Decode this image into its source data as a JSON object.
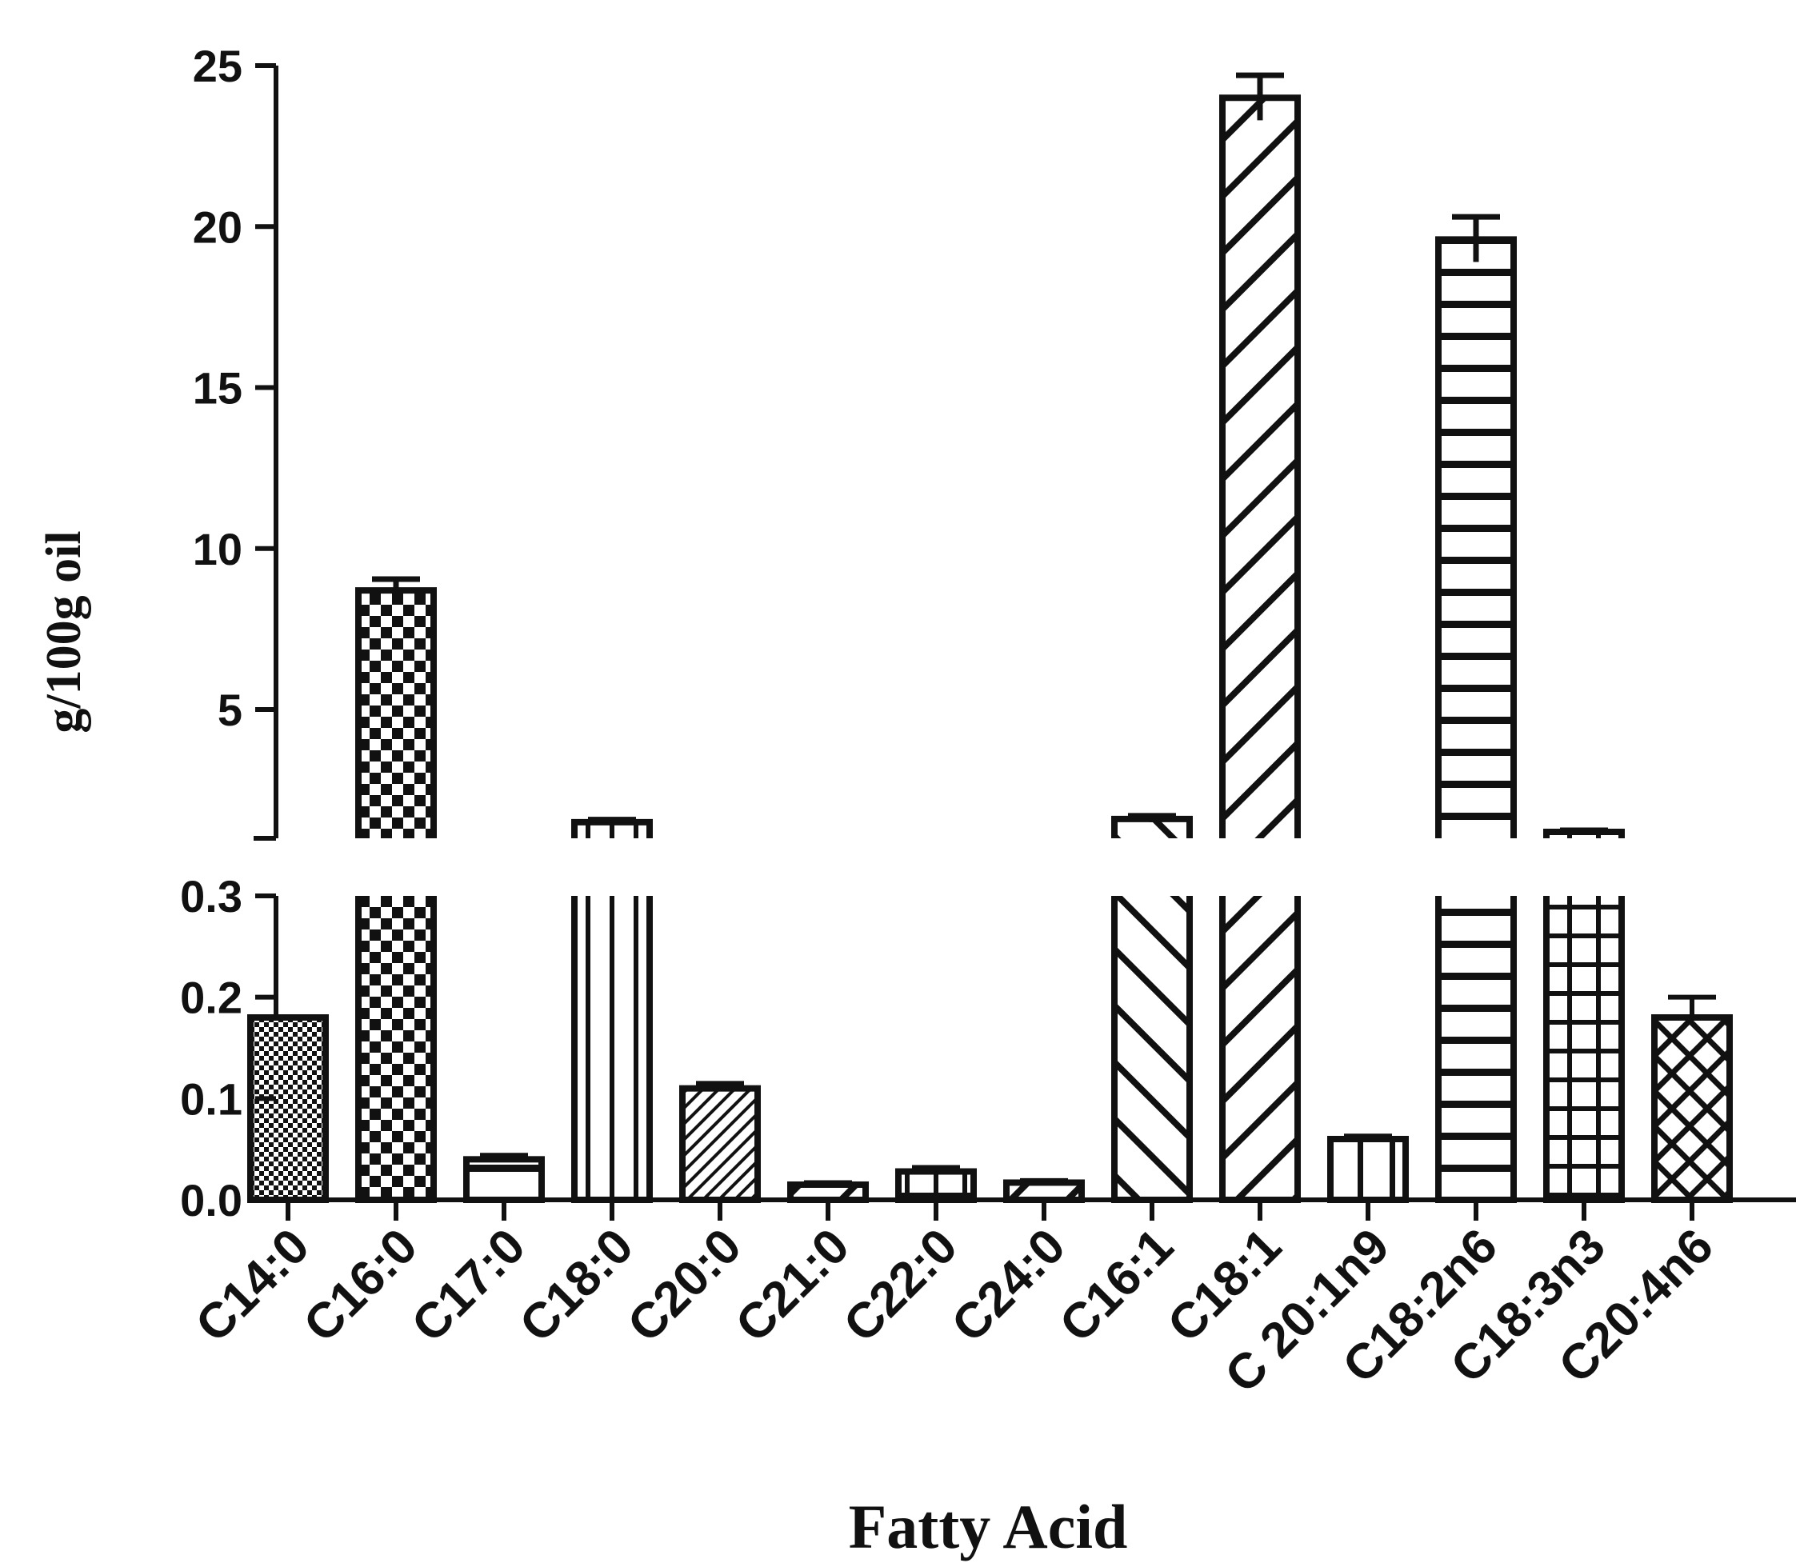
{
  "chart_data": {
    "type": "bar",
    "title": "",
    "xlabel": "Fatty Acid",
    "ylabel": "g/100g oil",
    "categories": [
      "C14:0",
      "C16:0",
      "C17:0",
      "C18:0",
      "C20:0",
      "C21:0",
      "C22:0",
      "C24:0",
      "C16:1",
      "C18:1",
      "C 20:1n9",
      "C18:2n6",
      "C18:3n3",
      "C20:4n6"
    ],
    "values": [
      0.18,
      8.7,
      0.04,
      1.5,
      0.11,
      0.015,
      0.028,
      0.017,
      1.6,
      24.0,
      0.06,
      19.6,
      1.2,
      0.18
    ],
    "errors": [
      0.0,
      0.35,
      0.004,
      0.08,
      0.005,
      0.002,
      0.004,
      0.002,
      0.1,
      0.7,
      0.003,
      0.7,
      0.05,
      0.02
    ],
    "patterns": [
      "fine-checker",
      "checker",
      "horiz-lines",
      "vert-lines",
      "fine-diag",
      "diag",
      "grid",
      "diag",
      "back-diag",
      "diag",
      "vert-line",
      "horiz-lines",
      "grid",
      "crosshatch"
    ],
    "broken_axis": true,
    "lower_ylim": [
      0,
      0.3
    ],
    "upper_ylim": [
      1,
      25
    ],
    "lower_ticks": [
      "0.0",
      "0.1",
      "0.2",
      "0.3"
    ],
    "upper_ticks": [
      "5",
      "10",
      "15",
      "20",
      "25"
    ],
    "grid": false,
    "legend": "none",
    "color": "#111111"
  }
}
